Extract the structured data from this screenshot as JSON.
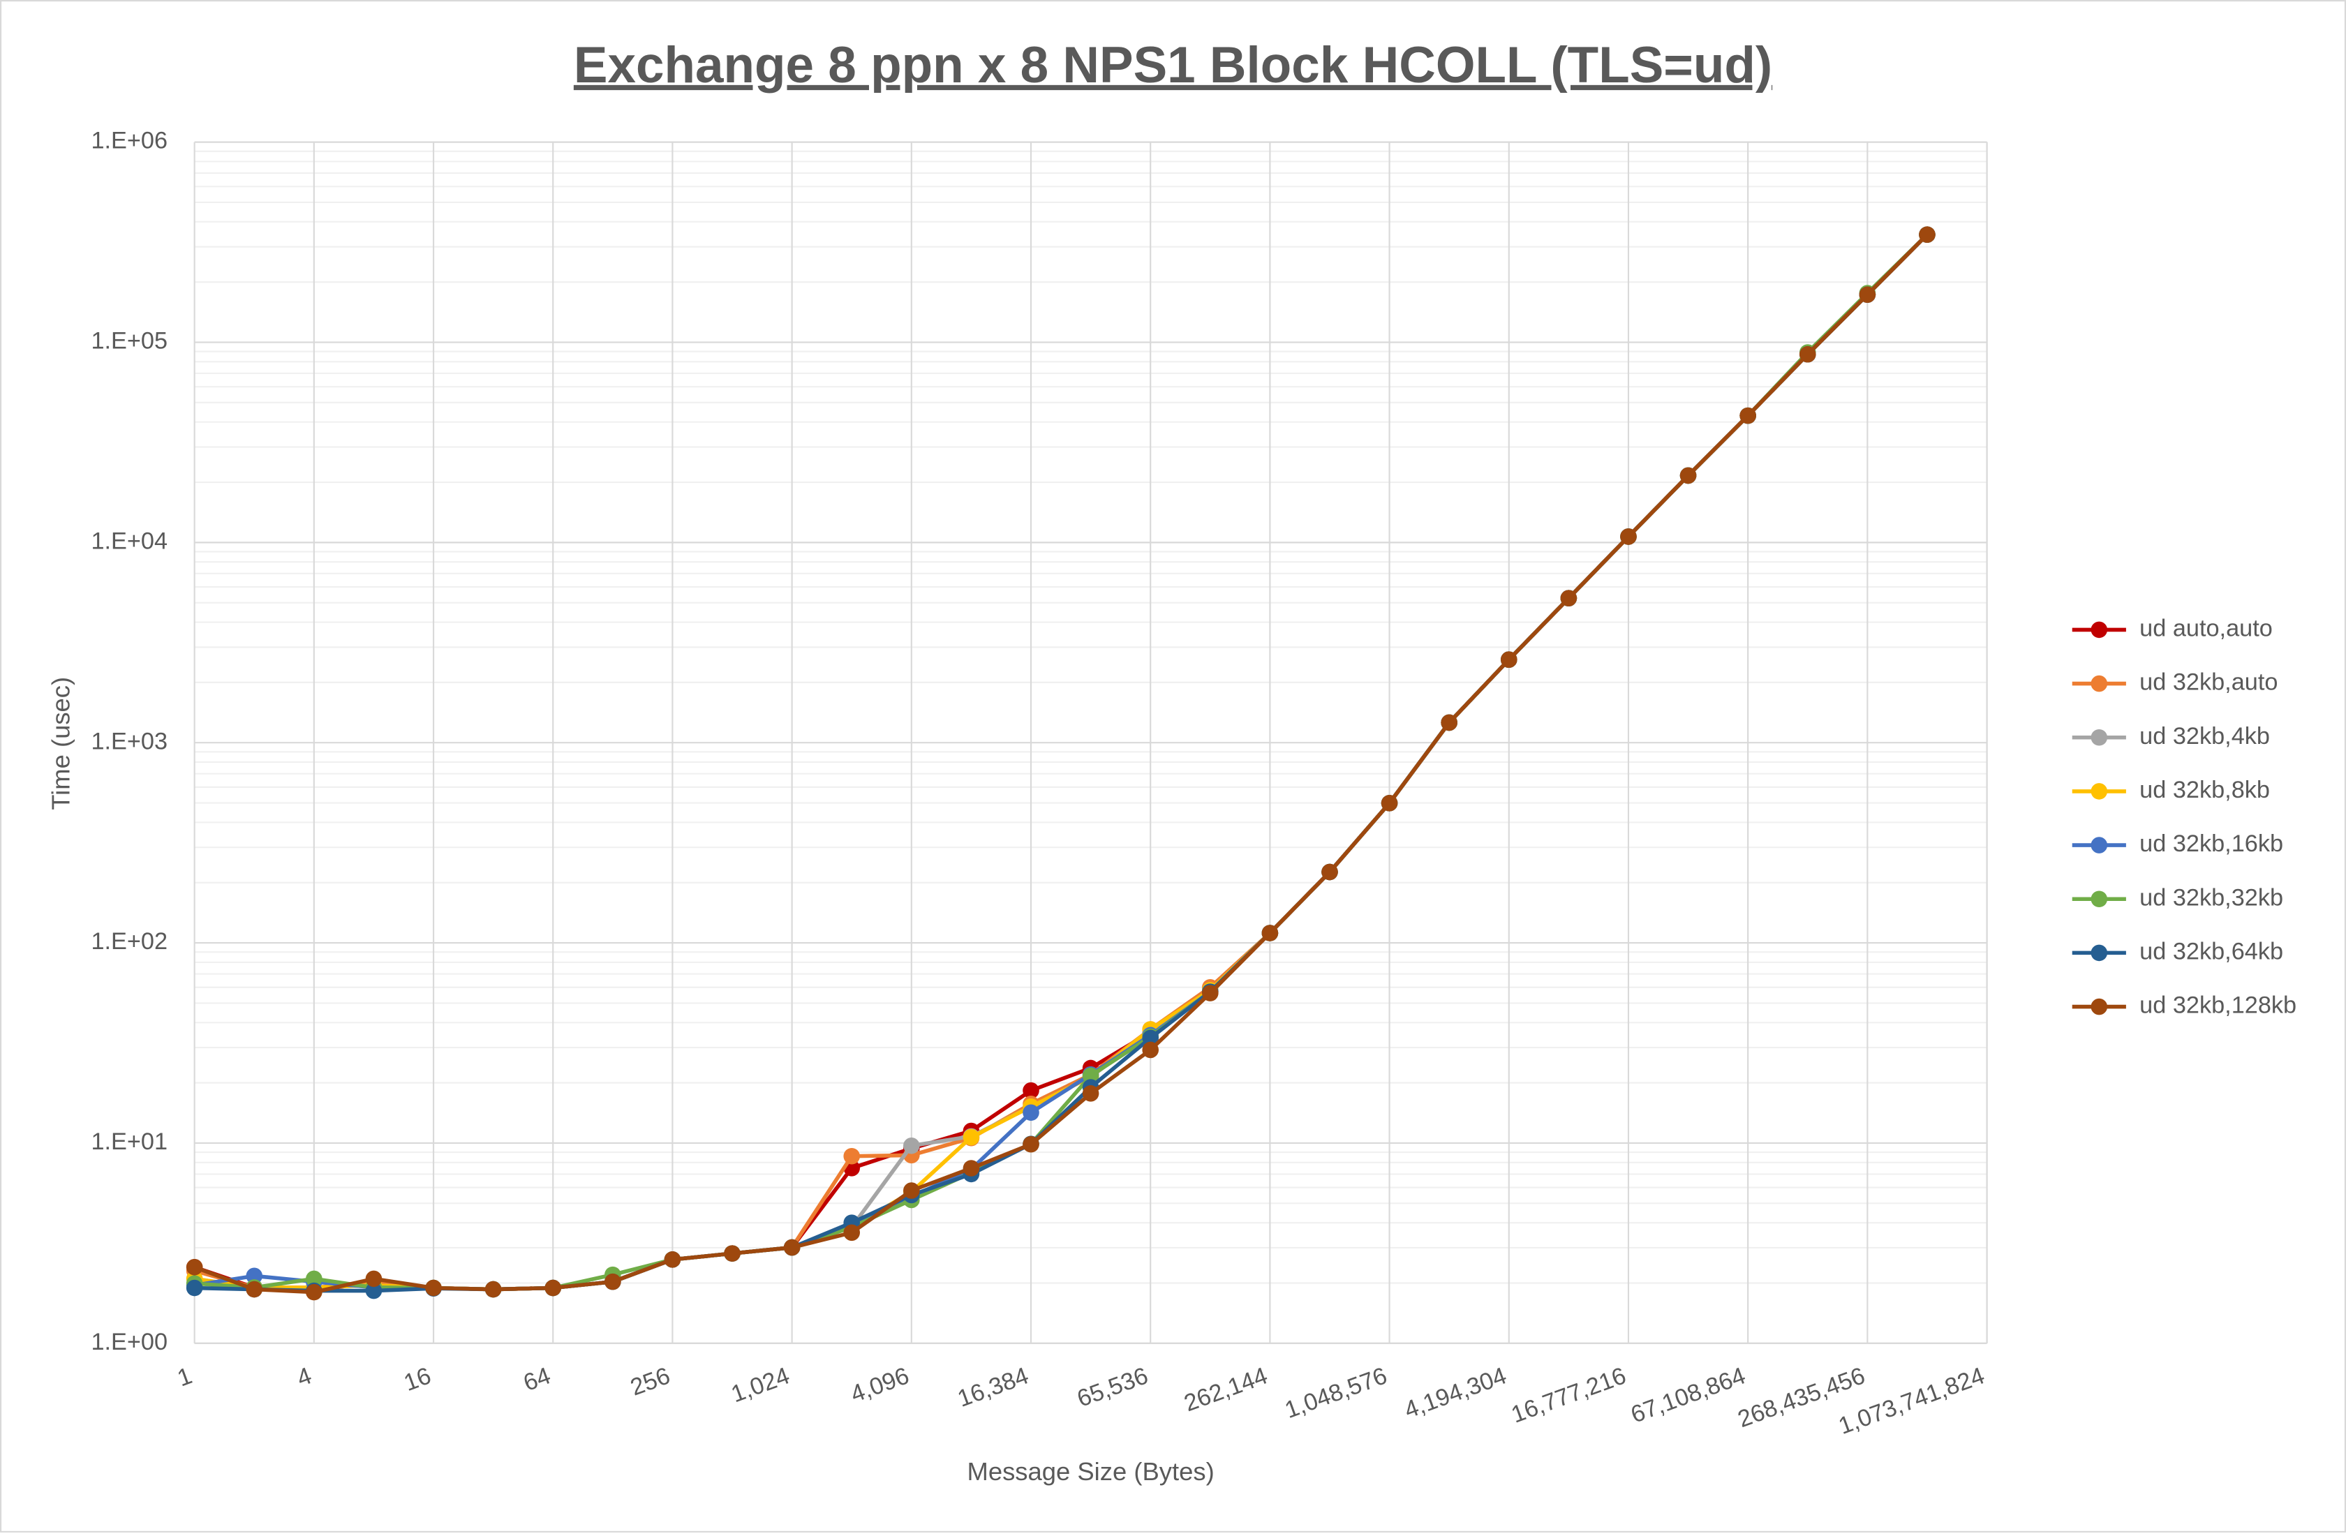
{
  "chart_data": {
    "type": "line",
    "title": "Exchange 8 ppn x 8 NPS1 Block HCOLL (TLS=ud)",
    "x_label": "Message Size (Bytes)",
    "y_label": "Time (usec)",
    "log_y": true,
    "grid": true,
    "legend": "right",
    "ylim": [
      1,
      1000000
    ],
    "yticks": [
      {
        "value": 1,
        "label": "1.E+00"
      },
      {
        "value": 10,
        "label": "1.E+01"
      },
      {
        "value": 100,
        "label": "1.E+02"
      },
      {
        "value": 1000,
        "label": "1.E+03"
      },
      {
        "value": 10000,
        "label": "1.E+04"
      },
      {
        "value": 100000,
        "label": "1.E+05"
      },
      {
        "value": 1000000,
        "label": "1.E+06"
      }
    ],
    "categories": [
      "1",
      null,
      "4",
      null,
      "16",
      null,
      "64",
      null,
      "256",
      null,
      "1,024",
      null,
      "4,096",
      null,
      "16,384",
      null,
      "65,536",
      null,
      "262,144",
      null,
      "1,048,576",
      null,
      "4,194,304",
      null,
      "16,777,216",
      null,
      "67,108,864",
      null,
      "268,435,456",
      null,
      "1,073,741,824"
    ],
    "series": [
      {
        "name": "ud auto,auto",
        "color": "#c00000",
        "values": [
          2.4,
          1.9,
          1.85,
          2.0,
          1.89,
          1.86,
          1.89,
          2.03,
          2.62,
          2.81,
          3.01,
          7.5,
          9.4,
          11.5,
          18.3,
          23.7,
          35.8,
          57,
          112,
          226,
          499,
          1260,
          2600,
          5270,
          10700,
          21600,
          43000,
          87100,
          173000,
          345000,
          null
        ]
      },
      {
        "name": "ud 32kb,auto",
        "color": "#ed7d31",
        "values": [
          2.3,
          1.9,
          1.9,
          2.0,
          1.89,
          1.86,
          1.89,
          2.03,
          2.62,
          2.81,
          3.01,
          8.6,
          8.7,
          10.6,
          15.7,
          22,
          37,
          60,
          112,
          226,
          499,
          1260,
          2600,
          5270,
          10700,
          21600,
          43000,
          87100,
          173000,
          345000,
          null
        ]
      },
      {
        "name": "ud 32kb,4kb",
        "color": "#a5a5a5",
        "values": [
          2.1,
          1.9,
          1.9,
          1.95,
          1.89,
          1.86,
          1.89,
          2.03,
          2.62,
          2.81,
          3.01,
          3.8,
          9.7,
          10.8,
          15.2,
          21.4,
          35.8,
          58,
          112,
          226,
          499,
          1260,
          2600,
          5270,
          10700,
          21600,
          43000,
          87100,
          173000,
          345000,
          null
        ]
      },
      {
        "name": "ud 32kb,8kb",
        "color": "#ffc000",
        "values": [
          2.1,
          1.9,
          1.9,
          1.95,
          1.89,
          1.86,
          1.89,
          2.03,
          2.62,
          2.81,
          3.01,
          3.8,
          5.7,
          10.7,
          15.2,
          21.4,
          37,
          58,
          112,
          226,
          499,
          1260,
          2600,
          5270,
          10700,
          21600,
          43000,
          87100,
          173000,
          345000,
          null
        ]
      },
      {
        "name": "ud 32kb,16kb",
        "color": "#4472c4",
        "values": [
          1.95,
          2.17,
          2.03,
          1.9,
          1.89,
          1.86,
          1.89,
          2.03,
          2.62,
          2.81,
          3.01,
          3.96,
          5.4,
          7.4,
          14.2,
          22,
          34.6,
          57,
          112,
          226,
          499,
          1260,
          2600,
          5270,
          10700,
          21600,
          43000,
          87100,
          173000,
          345000,
          null
        ]
      },
      {
        "name": "ud 32kb,32kb",
        "color": "#70ad47",
        "values": [
          1.99,
          1.9,
          2.1,
          1.9,
          1.89,
          1.86,
          1.89,
          2.2,
          2.62,
          2.81,
          3.01,
          3.8,
          5.2,
          7.1,
          9.9,
          21.7,
          34,
          57,
          112,
          226,
          499,
          1260,
          2600,
          5270,
          10700,
          21600,
          43000,
          89000,
          176000,
          345000,
          null
        ]
      },
      {
        "name": "ud 32kb,64kb",
        "color": "#255e91",
        "values": [
          1.89,
          1.86,
          1.83,
          1.83,
          1.88,
          1.86,
          1.89,
          2.03,
          2.62,
          2.81,
          3.01,
          4.0,
          5.5,
          7.0,
          9.9,
          19,
          33.5,
          57,
          112,
          226,
          499,
          1260,
          2600,
          5270,
          10700,
          21600,
          43000,
          87100,
          173000,
          345000,
          null
        ]
      },
      {
        "name": "ud 32kb,128kb",
        "color": "#9e480e",
        "values": [
          2.4,
          1.86,
          1.8,
          2.1,
          1.89,
          1.86,
          1.89,
          2.03,
          2.62,
          2.81,
          3.01,
          3.57,
          5.79,
          7.49,
          9.86,
          17.7,
          29.2,
          56.1,
          112,
          226,
          499,
          1260,
          2600,
          5270,
          10700,
          21600,
          43000,
          87100,
          173000,
          345000,
          null
        ]
      }
    ]
  }
}
